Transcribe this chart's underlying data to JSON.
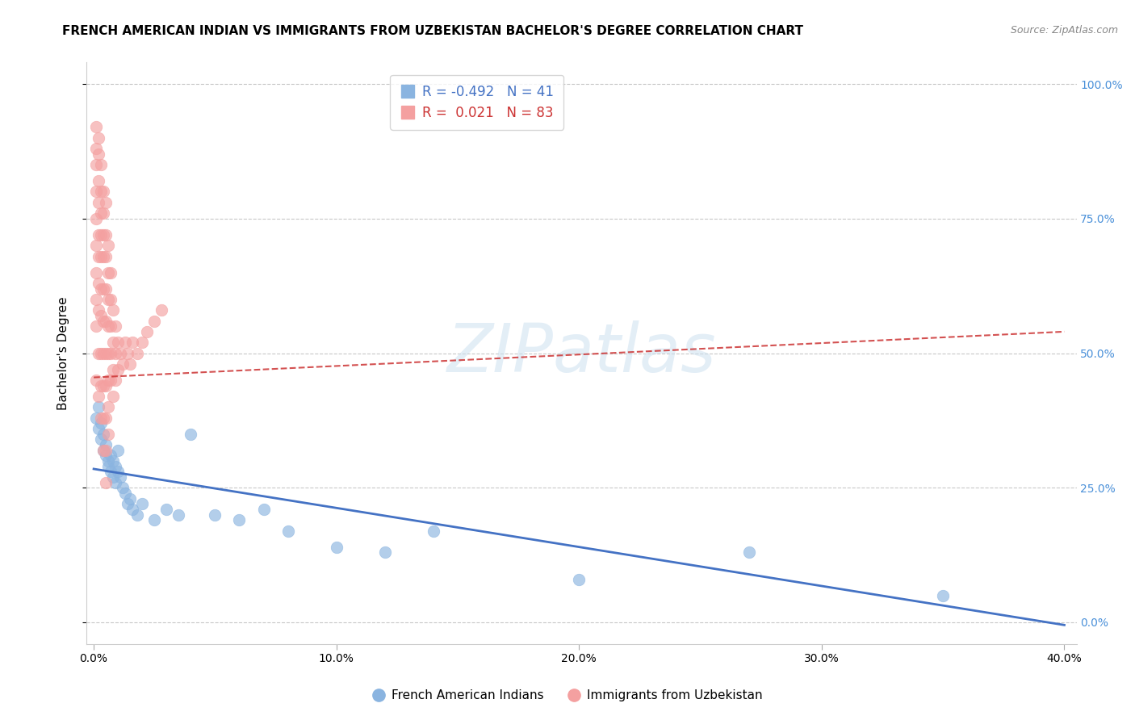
{
  "title": "FRENCH AMERICAN INDIAN VS IMMIGRANTS FROM UZBEKISTAN BACHELOR'S DEGREE CORRELATION CHART",
  "source": "Source: ZipAtlas.com",
  "ylabel": "Bachelor's Degree",
  "xlabel_ticks": [
    "0.0%",
    "10.0%",
    "20.0%",
    "30.0%",
    "40.0%"
  ],
  "xlabel_vals": [
    0.0,
    0.1,
    0.2,
    0.3,
    0.4
  ],
  "ylabel_ticks": [
    "0.0%",
    "25.0%",
    "50.0%",
    "75.0%",
    "100.0%"
  ],
  "ylabel_vals": [
    0.0,
    0.25,
    0.5,
    0.75,
    1.0
  ],
  "blue_R": -0.492,
  "blue_N": 41,
  "pink_R": 0.021,
  "pink_N": 83,
  "blue_color": "#8ab4e0",
  "pink_color": "#f4a0a0",
  "blue_line_color": "#4472c4",
  "pink_line_color": "#cc3333",
  "legend_label_blue": "French American Indians",
  "legend_label_pink": "Immigrants from Uzbekistan",
  "blue_scatter_x": [
    0.001,
    0.002,
    0.002,
    0.003,
    0.003,
    0.004,
    0.004,
    0.005,
    0.005,
    0.006,
    0.006,
    0.007,
    0.007,
    0.008,
    0.008,
    0.009,
    0.009,
    0.01,
    0.01,
    0.011,
    0.012,
    0.013,
    0.014,
    0.015,
    0.016,
    0.018,
    0.02,
    0.025,
    0.03,
    0.035,
    0.04,
    0.05,
    0.06,
    0.07,
    0.08,
    0.1,
    0.12,
    0.14,
    0.2,
    0.27,
    0.35
  ],
  "blue_scatter_y": [
    0.38,
    0.4,
    0.36,
    0.34,
    0.37,
    0.35,
    0.32,
    0.33,
    0.31,
    0.3,
    0.29,
    0.31,
    0.28,
    0.3,
    0.27,
    0.29,
    0.26,
    0.28,
    0.32,
    0.27,
    0.25,
    0.24,
    0.22,
    0.23,
    0.21,
    0.2,
    0.22,
    0.19,
    0.21,
    0.2,
    0.35,
    0.2,
    0.19,
    0.21,
    0.17,
    0.14,
    0.13,
    0.17,
    0.08,
    0.13,
    0.05
  ],
  "pink_scatter_x": [
    0.001,
    0.001,
    0.001,
    0.001,
    0.001,
    0.001,
    0.001,
    0.001,
    0.001,
    0.001,
    0.002,
    0.002,
    0.002,
    0.002,
    0.002,
    0.002,
    0.002,
    0.002,
    0.002,
    0.002,
    0.003,
    0.003,
    0.003,
    0.003,
    0.003,
    0.003,
    0.003,
    0.003,
    0.003,
    0.003,
    0.004,
    0.004,
    0.004,
    0.004,
    0.004,
    0.004,
    0.004,
    0.004,
    0.004,
    0.004,
    0.005,
    0.005,
    0.005,
    0.005,
    0.005,
    0.005,
    0.005,
    0.005,
    0.005,
    0.005,
    0.006,
    0.006,
    0.006,
    0.006,
    0.006,
    0.006,
    0.006,
    0.006,
    0.007,
    0.007,
    0.007,
    0.007,
    0.007,
    0.008,
    0.008,
    0.008,
    0.008,
    0.009,
    0.009,
    0.009,
    0.01,
    0.01,
    0.011,
    0.012,
    0.013,
    0.014,
    0.015,
    0.016,
    0.018,
    0.02,
    0.022,
    0.025,
    0.028
  ],
  "pink_scatter_y": [
    0.92,
    0.88,
    0.85,
    0.8,
    0.75,
    0.7,
    0.65,
    0.6,
    0.55,
    0.45,
    0.9,
    0.87,
    0.82,
    0.78,
    0.72,
    0.68,
    0.63,
    0.58,
    0.5,
    0.42,
    0.85,
    0.8,
    0.76,
    0.72,
    0.68,
    0.62,
    0.57,
    0.5,
    0.44,
    0.38,
    0.8,
    0.76,
    0.72,
    0.68,
    0.62,
    0.56,
    0.5,
    0.44,
    0.38,
    0.32,
    0.78,
    0.72,
    0.68,
    0.62,
    0.56,
    0.5,
    0.44,
    0.38,
    0.32,
    0.26,
    0.7,
    0.65,
    0.6,
    0.55,
    0.5,
    0.45,
    0.4,
    0.35,
    0.65,
    0.6,
    0.55,
    0.5,
    0.45,
    0.58,
    0.52,
    0.47,
    0.42,
    0.55,
    0.5,
    0.45,
    0.52,
    0.47,
    0.5,
    0.48,
    0.52,
    0.5,
    0.48,
    0.52,
    0.5,
    0.52,
    0.54,
    0.56,
    0.58
  ],
  "watermark_text": "ZIPatlas",
  "background_color": "#ffffff",
  "plot_bg_color": "#ffffff",
  "grid_color": "#c8c8c8",
  "title_fontsize": 11,
  "axis_label_fontsize": 11,
  "tick_fontsize": 10,
  "right_tick_color": "#4a90d9",
  "xlim": [
    -0.003,
    0.405
  ],
  "ylim": [
    -0.04,
    1.04
  ],
  "blue_trend_x": [
    0.0,
    0.4
  ],
  "blue_trend_y": [
    0.285,
    -0.005
  ],
  "pink_trend_x": [
    0.0,
    0.4
  ],
  "pink_trend_y": [
    0.455,
    0.54
  ]
}
